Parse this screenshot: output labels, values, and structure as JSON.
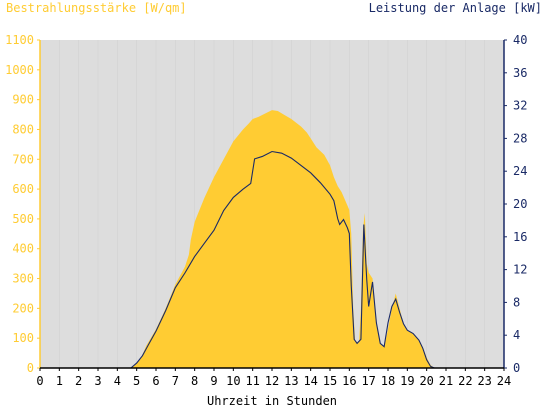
{
  "chart_data": {
    "type": "area",
    "left_axis_title": "Bestrahlungsstärke [W/qm]",
    "right_axis_title": "Leistung der Anlage [kW]",
    "xlabel": "Uhrzeit in Stunden",
    "xlim": [
      0,
      24
    ],
    "ylim_left": [
      0,
      1100
    ],
    "ylim_right": [
      0,
      40
    ],
    "x_ticks": [
      "0",
      "1",
      "2",
      "3",
      "4",
      "5",
      "6",
      "7",
      "8",
      "9",
      "10",
      "11",
      "12",
      "13",
      "14",
      "15",
      "16",
      "17",
      "18",
      "19",
      "20",
      "21",
      "22",
      "23",
      "24"
    ],
    "y_ticks_left": [
      "0",
      "100",
      "200",
      "300",
      "400",
      "500",
      "600",
      "700",
      "800",
      "900",
      "1000",
      "1100"
    ],
    "y_ticks_right": [
      "0",
      "4",
      "8",
      "12",
      "16",
      "20",
      "24",
      "28",
      "32",
      "36",
      "40"
    ],
    "grid": true,
    "colors": {
      "irradiance_fill": "#ffcc33",
      "power_line": "#1a2a66",
      "plot_background": "#dddddd",
      "left_axis_text": "#ffcc33",
      "right_axis_text": "#1a2a66",
      "x_axis_text": "#000000"
    },
    "series": [
      {
        "axis": "left",
        "style": "area",
        "points": [
          [
            0,
            0
          ],
          [
            4.6,
            0
          ],
          [
            4.9,
            8
          ],
          [
            5.2,
            30
          ],
          [
            5.5,
            75
          ],
          [
            6.0,
            130
          ],
          [
            6.5,
            200
          ],
          [
            7.0,
            280
          ],
          [
            7.5,
            340
          ],
          [
            7.7,
            380
          ],
          [
            7.8,
            430
          ],
          [
            8.0,
            490
          ],
          [
            8.5,
            570
          ],
          [
            9.0,
            640
          ],
          [
            9.5,
            700
          ],
          [
            10.0,
            760
          ],
          [
            10.5,
            800
          ],
          [
            10.8,
            820
          ],
          [
            11.0,
            835
          ],
          [
            11.3,
            842
          ],
          [
            11.7,
            855
          ],
          [
            12.0,
            865
          ],
          [
            12.3,
            862
          ],
          [
            12.6,
            850
          ],
          [
            13.0,
            835
          ],
          [
            13.5,
            810
          ],
          [
            13.8,
            790
          ],
          [
            14.0,
            770
          ],
          [
            14.3,
            740
          ],
          [
            14.7,
            715
          ],
          [
            15.0,
            680
          ],
          [
            15.2,
            640
          ],
          [
            15.4,
            610
          ],
          [
            15.6,
            590
          ],
          [
            15.8,
            560
          ],
          [
            16.0,
            530
          ],
          [
            16.1,
            450
          ],
          [
            16.2,
            200
          ],
          [
            16.3,
            90
          ],
          [
            16.5,
            85
          ],
          [
            16.6,
            200
          ],
          [
            16.7,
            460
          ],
          [
            16.8,
            520
          ],
          [
            16.9,
            350
          ],
          [
            17.0,
            320
          ],
          [
            17.2,
            300
          ],
          [
            17.4,
            160
          ],
          [
            17.6,
            80
          ],
          [
            17.8,
            70
          ],
          [
            18.0,
            130
          ],
          [
            18.2,
            200
          ],
          [
            18.4,
            250
          ],
          [
            18.6,
            200
          ],
          [
            18.8,
            150
          ],
          [
            19.0,
            125
          ],
          [
            19.3,
            115
          ],
          [
            19.6,
            95
          ],
          [
            19.8,
            70
          ],
          [
            20.0,
            35
          ],
          [
            20.2,
            10
          ],
          [
            20.4,
            0
          ],
          [
            24,
            0
          ]
        ]
      },
      {
        "axis": "right",
        "style": "line",
        "points": [
          [
            0,
            0
          ],
          [
            4.7,
            0
          ],
          [
            5.0,
            0.6
          ],
          [
            5.3,
            1.5
          ],
          [
            5.6,
            2.8
          ],
          [
            6.0,
            4.5
          ],
          [
            6.5,
            7
          ],
          [
            7.0,
            9.8
          ],
          [
            7.5,
            11.6
          ],
          [
            8.0,
            13.6
          ],
          [
            8.5,
            15.2
          ],
          [
            9.0,
            16.8
          ],
          [
            9.5,
            19.2
          ],
          [
            10.0,
            20.8
          ],
          [
            10.5,
            21.8
          ],
          [
            10.9,
            22.5
          ],
          [
            11.1,
            25.5
          ],
          [
            11.5,
            25.8
          ],
          [
            12.0,
            26.4
          ],
          [
            12.5,
            26.2
          ],
          [
            13.0,
            25.6
          ],
          [
            13.5,
            24.7
          ],
          [
            14.0,
            23.8
          ],
          [
            14.5,
            22.6
          ],
          [
            15.0,
            21.2
          ],
          [
            15.2,
            20.4
          ],
          [
            15.4,
            18.2
          ],
          [
            15.5,
            17.5
          ],
          [
            15.7,
            18.1
          ],
          [
            15.9,
            17.1
          ],
          [
            16.0,
            16.4
          ],
          [
            16.1,
            10
          ],
          [
            16.25,
            3.5
          ],
          [
            16.4,
            3.0
          ],
          [
            16.6,
            3.5
          ],
          [
            16.75,
            17.5
          ],
          [
            16.9,
            10.8
          ],
          [
            17.0,
            7.5
          ],
          [
            17.2,
            10.5
          ],
          [
            17.4,
            5.5
          ],
          [
            17.6,
            3.0
          ],
          [
            17.8,
            2.6
          ],
          [
            18.0,
            5.5
          ],
          [
            18.2,
            7.5
          ],
          [
            18.4,
            8.4
          ],
          [
            18.6,
            6.8
          ],
          [
            18.8,
            5.4
          ],
          [
            19.0,
            4.6
          ],
          [
            19.3,
            4.2
          ],
          [
            19.6,
            3.4
          ],
          [
            19.8,
            2.4
          ],
          [
            20.0,
            1.0
          ],
          [
            20.2,
            0.2
          ],
          [
            20.4,
            0
          ],
          [
            24,
            0
          ]
        ]
      }
    ]
  }
}
